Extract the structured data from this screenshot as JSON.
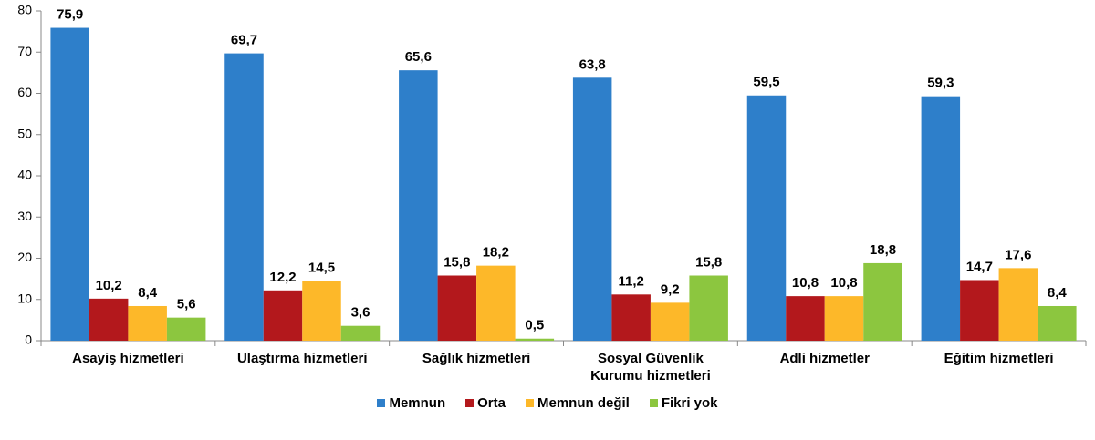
{
  "chart_data": {
    "type": "bar",
    "categories": [
      "Asayiş hizmetleri",
      "Ulaştırma hizmetleri",
      "Sağlık hizmetleri",
      "Sosyal Güvenlik Kurumu hizmetleri",
      "Adli hizmetler",
      "Eğitim hizmetleri"
    ],
    "series": [
      {
        "name": "Memnun",
        "color": "#2e7fca",
        "values": [
          75.9,
          69.7,
          65.6,
          63.8,
          59.5,
          59.3
        ],
        "value_labels": [
          "75,9",
          "69,7",
          "65,6",
          "63,8",
          "59,5",
          "59,3"
        ]
      },
      {
        "name": "Orta",
        "color": "#b3181c",
        "values": [
          10.2,
          12.2,
          15.8,
          11.2,
          10.8,
          14.7
        ],
        "value_labels": [
          "10,2",
          "12,2",
          "15,8",
          "11,2",
          "10,8",
          "14,7"
        ]
      },
      {
        "name": "Memnun değil",
        "color": "#fdb829",
        "values": [
          8.4,
          14.5,
          18.2,
          9.2,
          10.8,
          17.6
        ],
        "value_labels": [
          "8,4",
          "14,5",
          "18,2",
          "9,2",
          "10,8",
          "17,6"
        ]
      },
      {
        "name": "Fikri yok",
        "color": "#8cc63f",
        "values": [
          5.6,
          3.6,
          0.5,
          15.8,
          18.8,
          8.4
        ],
        "value_labels": [
          "5,6",
          "3,6",
          "0,5",
          "15,8",
          "18,8",
          "8,4"
        ]
      }
    ],
    "ylim": [
      0,
      80
    ],
    "yticks": [
      0,
      10,
      20,
      30,
      40,
      50,
      60,
      70,
      80
    ],
    "grid": false,
    "legend": "bottom"
  }
}
